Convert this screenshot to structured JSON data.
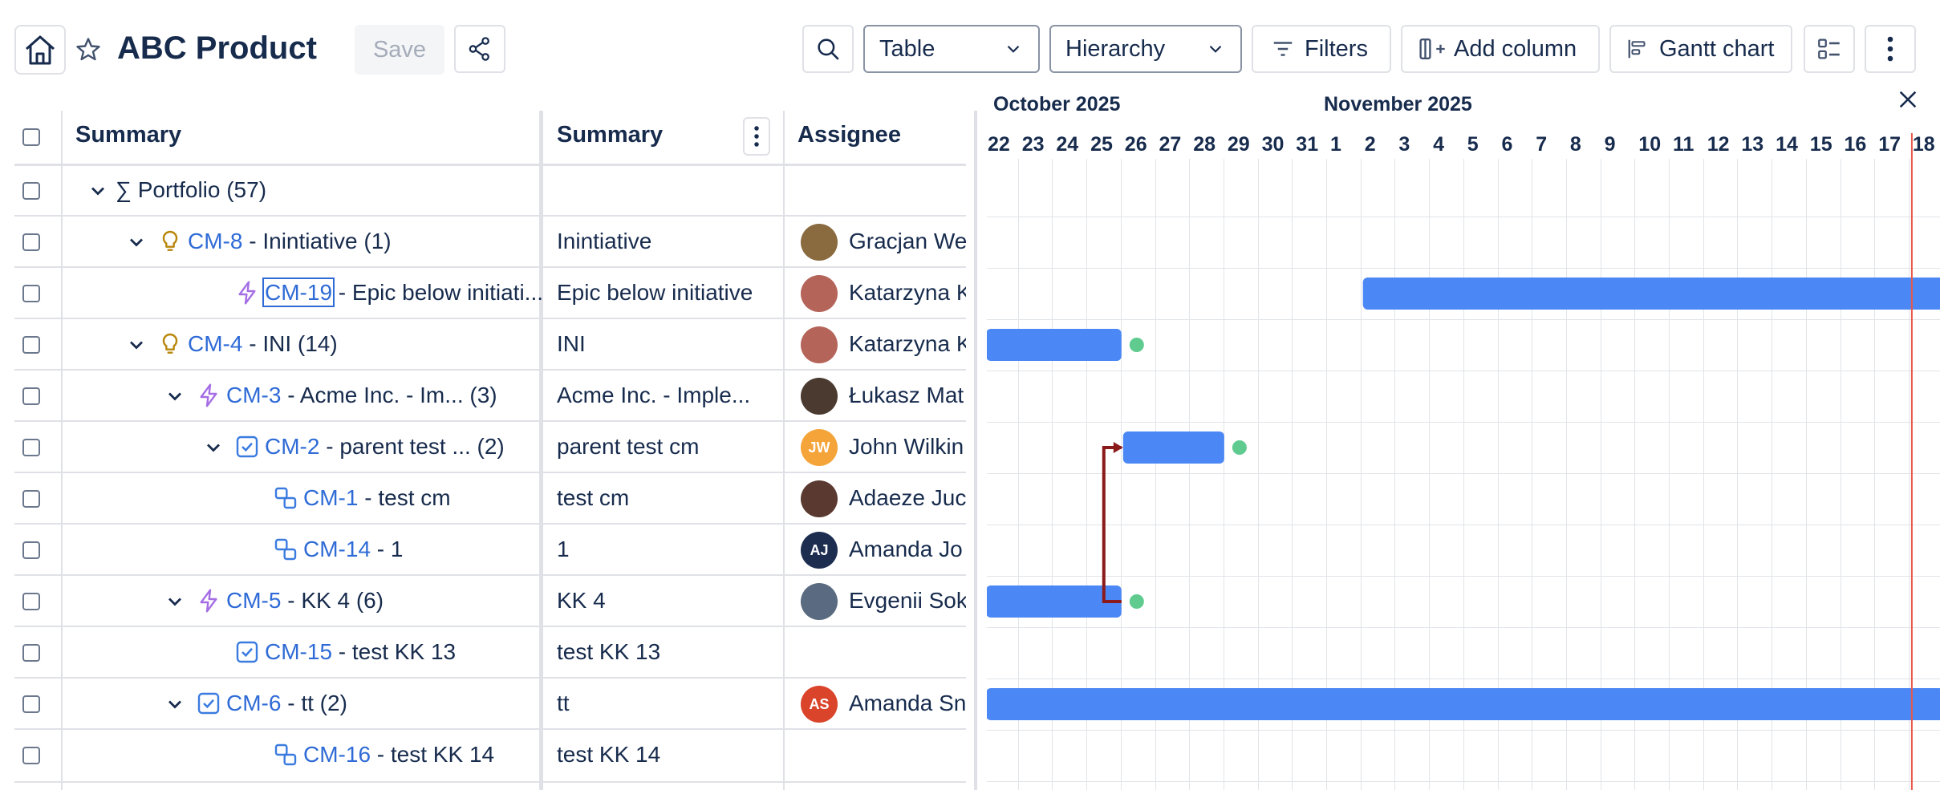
{
  "header": {
    "title": "ABC Product",
    "save_label": "Save",
    "view_select": "Table",
    "grouping_select": "Hierarchy",
    "filters_label": "Filters",
    "add_column_label": "Add column",
    "gantt_label": "Gantt chart"
  },
  "table": {
    "columns": [
      "Summary",
      "Summary",
      "Assignee"
    ],
    "rows": [
      {
        "key": "",
        "title": "∑ Portfolio (57)",
        "summary": "",
        "assignee": "",
        "initials": "",
        "avatar_color": ""
      },
      {
        "key": "CM-8",
        "title": " - Inintiative (1)",
        "summary": "Inintiative",
        "assignee": "Gracjan Wek",
        "initials": "",
        "avatar_color": "#8a6a3f"
      },
      {
        "key": "CM-19",
        "title": " - Epic below initiati...",
        "summary": "Epic below initiative",
        "assignee": "Katarzyna K",
        "initials": "",
        "avatar_color": "#b5645a"
      },
      {
        "key": "CM-4",
        "title": " - INI (14)",
        "summary": "INI",
        "assignee": "Katarzyna K",
        "initials": "",
        "avatar_color": "#b5645a"
      },
      {
        "key": "CM-3",
        "title": " - Acme Inc. - Im...  (3)",
        "summary": "Acme Inc. - Imple...",
        "assignee": "Łukasz Mat",
        "initials": "",
        "avatar_color": "#4a3a30"
      },
      {
        "key": "CM-2",
        "title": " - parent test ... (2)",
        "summary": "parent test cm",
        "assignee": "John Wilkin",
        "initials": "JW",
        "avatar_color": "#f5a43a"
      },
      {
        "key": "CM-1",
        "title": " - test cm",
        "summary": "test cm",
        "assignee": "Adaeze Juc",
        "initials": "",
        "avatar_color": "#5a3a30"
      },
      {
        "key": "CM-14",
        "title": " - 1",
        "summary": "1",
        "assignee": "Amanda Jo",
        "initials": "AJ",
        "avatar_color": "#1d2d50"
      },
      {
        "key": "CM-5",
        "title": " - KK 4 (6)",
        "summary": "KK 4",
        "assignee": "Evgenii Sok",
        "initials": "",
        "avatar_color": "#5a6a80"
      },
      {
        "key": "CM-15",
        "title": " - test KK 13",
        "summary": "test KK 13",
        "assignee": "",
        "initials": "",
        "avatar_color": ""
      },
      {
        "key": "CM-6",
        "title": " - tt (2)",
        "summary": "tt",
        "assignee": "Amanda Sn",
        "initials": "AS",
        "avatar_color": "#d9442b"
      },
      {
        "key": "CM-16",
        "title": " - test KK 14",
        "summary": "test KK 14",
        "assignee": "",
        "initials": "",
        "avatar_color": ""
      }
    ]
  },
  "gantt": {
    "months": [
      "October 2025",
      "November 2025"
    ],
    "days": [
      "22",
      "23",
      "24",
      "25",
      "26",
      "27",
      "28",
      "29",
      "30",
      "31",
      "1",
      "2",
      "3",
      "4",
      "5",
      "6",
      "7",
      "8",
      "9",
      "10",
      "11",
      "12",
      "13",
      "14",
      "15",
      "16",
      "17",
      "18"
    ],
    "today": "18",
    "bars": [
      {
        "row": "CM-19",
        "start": "2",
        "end": "18"
      },
      {
        "row": "CM-4",
        "start": "22",
        "end": "25"
      },
      {
        "row": "CM-2",
        "start": "26",
        "end": "28"
      },
      {
        "row": "CM-5",
        "start": "22",
        "end": "25"
      },
      {
        "row": "CM-6",
        "start": "22",
        "end": "18"
      }
    ],
    "dependency": {
      "from": "CM-5",
      "to": "CM-2"
    },
    "colors": {
      "bar": "#4c88f5",
      "milestone": "#5fcb8f",
      "dependency": "#8b1a1a",
      "today_line": "#e8574b",
      "link": "#2f6bd6"
    }
  }
}
